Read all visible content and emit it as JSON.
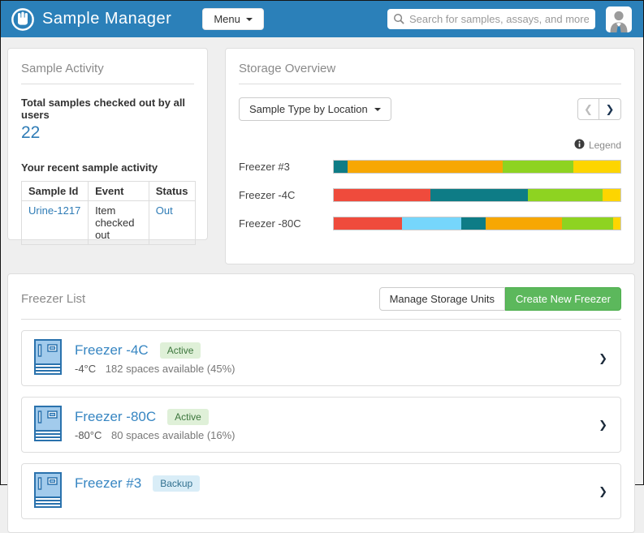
{
  "header": {
    "app_title": "Sample Manager",
    "menu_label": "Menu",
    "search_placeholder": "Search for samples, assays, and more"
  },
  "icons": {
    "prev_chevron": "❮",
    "next_chevron": "❯",
    "row_chevron": "❯"
  },
  "sample_activity": {
    "title": "Sample Activity",
    "total_label": "Total samples checked out by all users",
    "total_value": "22",
    "recent_label": "Your recent sample activity",
    "table": {
      "headers": [
        "Sample Id",
        "Event",
        "Status"
      ],
      "rows": [
        {
          "sample_id": "Urine-1217",
          "event": "Item checked out",
          "status": "Out"
        }
      ]
    }
  },
  "storage_overview": {
    "title": "Storage Overview",
    "view_selector_label": "Sample Type by Location",
    "legend_label": "Legend",
    "chart_data": {
      "type": "bar",
      "subtype": "horizontal-stacked-percent",
      "xlim": [
        0,
        100
      ],
      "palette": {
        "teal": "#0e7c86",
        "red": "#ef4b3c",
        "sky": "#76d6fb",
        "amber": "#f7a703",
        "lime": "#8ed321",
        "yellow": "#fdd500"
      },
      "bars": [
        {
          "label": "Freezer #3",
          "segments": [
            {
              "color": "teal",
              "pct": 4.8
            },
            {
              "color": "amber",
              "pct": 54.0
            },
            {
              "color": "lime",
              "pct": 24.7
            },
            {
              "color": "yellow",
              "pct": 16.5
            }
          ]
        },
        {
          "label": "Freezer -4C",
          "segments": [
            {
              "color": "red",
              "pct": 33.7
            },
            {
              "color": "teal",
              "pct": 34.0
            },
            {
              "color": "lime",
              "pct": 26.2
            },
            {
              "color": "yellow",
              "pct": 6.1
            }
          ]
        },
        {
          "label": "Freezer -80C",
          "segments": [
            {
              "color": "red",
              "pct": 23.9
            },
            {
              "color": "sky",
              "pct": 20.5
            },
            {
              "color": "teal",
              "pct": 8.6
            },
            {
              "color": "amber",
              "pct": 26.6
            },
            {
              "color": "lime",
              "pct": 18.0
            },
            {
              "color": "yellow",
              "pct": 2.4
            }
          ]
        }
      ]
    }
  },
  "freezer_list": {
    "title": "Freezer List",
    "manage_button": "Manage Storage Units",
    "create_button": "Create New Freezer",
    "freezers": [
      {
        "name": "Freezer -4C",
        "badge": "Active",
        "temp": "-4°C",
        "availability": "182 spaces available (45%)"
      },
      {
        "name": "Freezer -80C",
        "badge": "Active",
        "temp": "-80°C",
        "availability": "80 spaces available (16%)"
      },
      {
        "name": "Freezer #3",
        "badge": "Backup",
        "temp": "",
        "availability": ""
      }
    ]
  },
  "colors": {
    "header_bg": "#2b80b9",
    "link_blue": "#2f7cb6",
    "create_green": "#5cb85c",
    "active_badge_bg": "#dff0d8",
    "backup_badge_bg": "#d9edf7"
  }
}
